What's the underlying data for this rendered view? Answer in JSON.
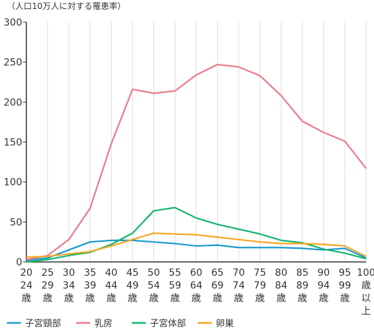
{
  "chart_data": {
    "type": "line",
    "ylabel": "（人口10万人に対する罹患率）",
    "ylim": [
      0,
      300
    ],
    "yticks": [
      0,
      50,
      100,
      150,
      200,
      250,
      300
    ],
    "grid": "vertical",
    "legend_position": "bottom-left",
    "categories": [
      [
        "20",
        "24",
        "歳"
      ],
      [
        "25",
        "29",
        "歳"
      ],
      [
        "30",
        "34",
        "歳"
      ],
      [
        "35",
        "39",
        "歳"
      ],
      [
        "40",
        "44",
        "歳"
      ],
      [
        "45",
        "49",
        "歳"
      ],
      [
        "50",
        "54",
        "歳"
      ],
      [
        "55",
        "59",
        "歳"
      ],
      [
        "60",
        "64",
        "歳"
      ],
      [
        "65",
        "69",
        "歳"
      ],
      [
        "70",
        "74",
        "歳"
      ],
      [
        "75",
        "79",
        "歳"
      ],
      [
        "80",
        "84",
        "歳"
      ],
      [
        "85",
        "89",
        "歳"
      ],
      [
        "90",
        "94",
        "歳"
      ],
      [
        "95",
        "99",
        "歳"
      ],
      [
        "100",
        "歳",
        "以",
        "上"
      ]
    ],
    "series": [
      {
        "name": "子宮頸部",
        "color": "#1a9bcc",
        "values": [
          2,
          5,
          15,
          25,
          27,
          27,
          25,
          23,
          20,
          21,
          18,
          18,
          18,
          17,
          15,
          17,
          5
        ]
      },
      {
        "name": "乳房",
        "color": "#ec7a8a",
        "values": [
          3,
          8,
          28,
          67,
          148,
          216,
          211,
          214,
          234,
          247,
          244,
          233,
          208,
          176,
          162,
          151,
          117
        ]
      },
      {
        "name": "子宮体部",
        "color": "#14b46e",
        "values": [
          0,
          3,
          8,
          12,
          22,
          36,
          64,
          68,
          55,
          47,
          41,
          35,
          27,
          24,
          16,
          11,
          4
        ]
      },
      {
        "name": "卵巣",
        "color": "#f5a623",
        "values": [
          6,
          7,
          10,
          13,
          20,
          28,
          36,
          35,
          34,
          31,
          28,
          25,
          23,
          23,
          22,
          20,
          7
        ]
      }
    ]
  }
}
